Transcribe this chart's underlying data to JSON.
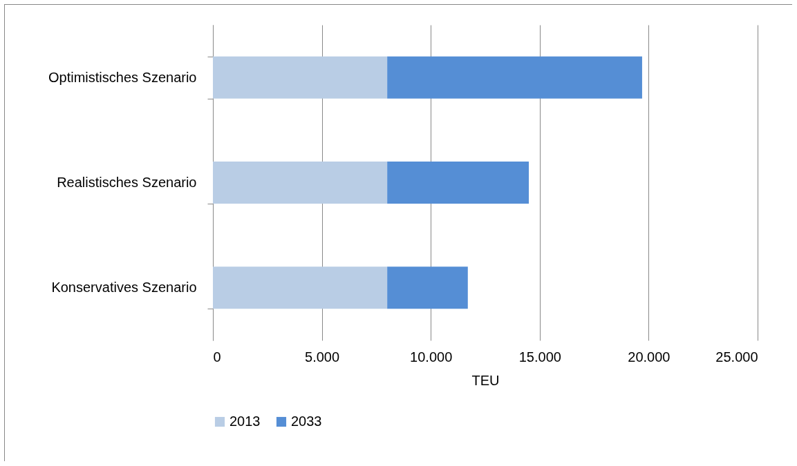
{
  "chart_data": {
    "type": "bar",
    "orientation": "horizontal",
    "stacked": true,
    "categories": [
      "Optimistisches Szenario",
      "Realistisches Szenario",
      "Konservatives Szenario"
    ],
    "series": [
      {
        "name": "2013",
        "color": "#b9cde5",
        "values": [
          8000,
          8000,
          8000
        ]
      },
      {
        "name": "2033",
        "color": "#558ed5",
        "values": [
          11700,
          6500,
          3700
        ]
      }
    ],
    "xlabel": "TEU",
    "xlim": [
      0,
      25000
    ],
    "xticks": [
      0,
      {
        "value": 5000,
        "label": "5.000"
      },
      {
        "value": 10000,
        "label": "10.000"
      },
      {
        "value": 15000,
        "label": "15.000"
      },
      {
        "value": 20000,
        "label": "20.000"
      },
      {
        "value": 25000,
        "label": "25.000"
      }
    ],
    "grid": "x",
    "legend": "bottom"
  }
}
